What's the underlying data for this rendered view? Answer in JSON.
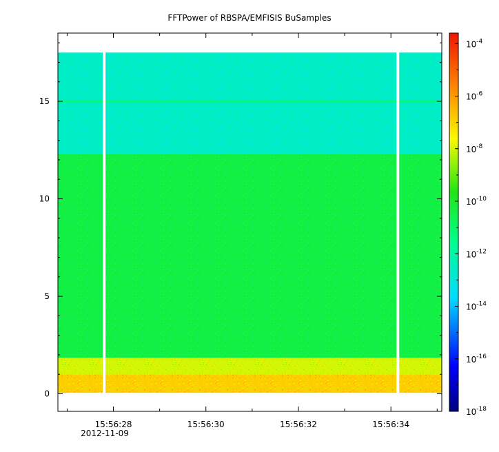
{
  "chart_data": {
    "type": "heatmap",
    "title": "FFTPower of RBSPA/EMFISIS  BuSamples",
    "xlabel": "",
    "ylabel": "",
    "date_label": "2012-11-09",
    "x_ticks": [
      "15:56:28",
      "15:56:30",
      "15:56:32",
      "15:56:34"
    ],
    "y_ticks": [
      "0",
      "5",
      "10",
      "15"
    ],
    "xlim_seconds": [
      26.8,
      35.1
    ],
    "ylim": [
      -0.9,
      18.5
    ],
    "data_y_range": [
      0.05,
      17.5
    ],
    "data_x_range_seconds": [
      26.8,
      35.1
    ],
    "gap_times_seconds": [
      27.8,
      34.15
    ],
    "power_bands": [
      {
        "y_from": 12.3,
        "y_to": 17.5,
        "log10_power": -12.6
      },
      {
        "y_from": 1.85,
        "y_to": 12.3,
        "log10_power": -10.4
      },
      {
        "y_from": 1.0,
        "y_to": 1.85,
        "log10_power": -8.0
      },
      {
        "y_from": 0.05,
        "y_to": 1.0,
        "log10_power": -6.9
      }
    ],
    "line_feature_y": 15.0,
    "colorbar": {
      "scale": "log",
      "range": [
        -18,
        -3.6
      ],
      "tick_base": "10",
      "tick_exponents": [
        "-4",
        "-6",
        "-8",
        "-10",
        "-12",
        "-14",
        "-16",
        "-18"
      ]
    }
  }
}
